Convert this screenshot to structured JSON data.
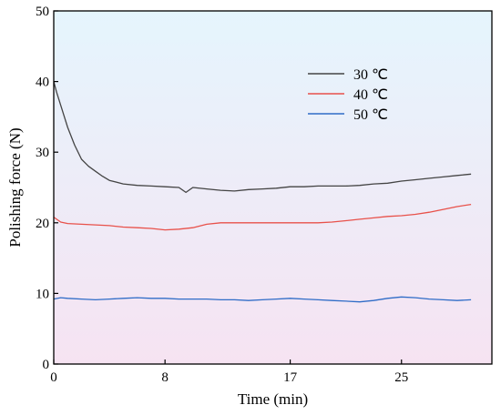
{
  "chart_data": {
    "type": "line",
    "xlabel": "Time (min)",
    "ylabel": "Polishing force (N)",
    "xlim": [
      0,
      31.5
    ],
    "ylim": [
      0,
      50
    ],
    "x_ticks": [
      0,
      8,
      17,
      25
    ],
    "x_tick_labels": [
      "0",
      "8",
      "17",
      "25"
    ],
    "y_ticks": [
      0,
      10,
      20,
      30,
      40,
      50
    ],
    "y_tick_labels": [
      "0",
      "10",
      "20",
      "30",
      "40",
      "50"
    ],
    "grid": false,
    "legend_position": "upper-right",
    "background": "vertical gradient light blue (top) to light pink (bottom)",
    "series": [
      {
        "name": "30 ℃",
        "color": "#444444",
        "x": [
          0,
          0.2,
          0.6,
          1.0,
          1.5,
          2.0,
          2.5,
          3.0,
          3.5,
          4.0,
          5.0,
          6.0,
          7.0,
          8.0,
          9.0,
          9.5,
          10.0,
          11.0,
          12.0,
          13.0,
          14.0,
          15.0,
          16.0,
          17.0,
          18.0,
          19.0,
          20.0,
          21.0,
          22.0,
          23.0,
          24.0,
          25.0,
          26.0,
          27.0,
          28.0,
          29.0,
          30.0
        ],
        "y": [
          40.0,
          38.5,
          36.0,
          33.5,
          31.0,
          29.0,
          28.0,
          27.3,
          26.6,
          26.0,
          25.5,
          25.3,
          25.2,
          25.1,
          25.0,
          24.3,
          25.0,
          24.8,
          24.6,
          24.5,
          24.7,
          24.8,
          24.9,
          25.1,
          25.1,
          25.2,
          25.2,
          25.2,
          25.3,
          25.5,
          25.6,
          25.9,
          26.1,
          26.3,
          26.5,
          26.7,
          26.9
        ]
      },
      {
        "name": "40 ℃",
        "color": "#e8514a",
        "x": [
          0,
          0.5,
          1.0,
          2.0,
          3.0,
          4.0,
          5.0,
          6.0,
          7.0,
          8.0,
          9.0,
          10.0,
          11.0,
          12.0,
          13.0,
          14.0,
          15.0,
          16.0,
          17.0,
          18.0,
          19.0,
          20.0,
          21.0,
          22.0,
          23.0,
          24.0,
          25.0,
          26.0,
          27.0,
          28.0,
          29.0,
          30.0
        ],
        "y": [
          20.8,
          20.1,
          19.9,
          19.8,
          19.7,
          19.6,
          19.4,
          19.3,
          19.2,
          19.0,
          19.1,
          19.3,
          19.8,
          20.0,
          20.0,
          20.0,
          20.0,
          20.0,
          20.0,
          20.0,
          20.0,
          20.1,
          20.3,
          20.5,
          20.7,
          20.9,
          21.0,
          21.2,
          21.5,
          21.9,
          22.3,
          22.6
        ]
      },
      {
        "name": "50 ℃",
        "color": "#2f6cc7",
        "x": [
          0,
          0.5,
          1.0,
          2.0,
          3.0,
          4.0,
          5.0,
          6.0,
          7.0,
          8.0,
          9.0,
          10.0,
          11.0,
          12.0,
          13.0,
          14.0,
          15.0,
          16.0,
          17.0,
          18.0,
          19.0,
          20.0,
          21.0,
          22.0,
          23.0,
          24.0,
          25.0,
          26.0,
          27.0,
          28.0,
          29.0,
          30.0
        ],
        "y": [
          9.2,
          9.4,
          9.3,
          9.2,
          9.1,
          9.2,
          9.3,
          9.4,
          9.3,
          9.3,
          9.2,
          9.2,
          9.2,
          9.1,
          9.1,
          9.0,
          9.1,
          9.2,
          9.3,
          9.2,
          9.1,
          9.0,
          8.9,
          8.8,
          9.0,
          9.3,
          9.5,
          9.4,
          9.2,
          9.1,
          9.0,
          9.1
        ]
      }
    ]
  }
}
